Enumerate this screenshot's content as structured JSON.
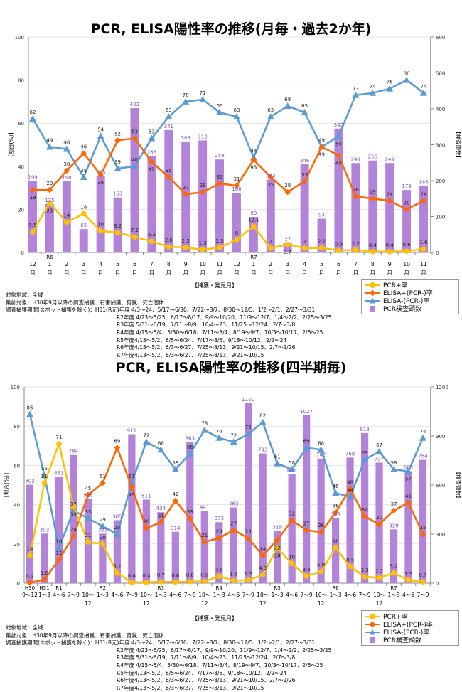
{
  "colors": {
    "pcr_pos": "#FFC000",
    "elisa_pos": "#FF6600",
    "elisa_neg": "#5B9BD5",
    "bars": "#B383D9",
    "bar_label": "#7B4FC0"
  },
  "legend": [
    "PCR+率",
    "ELISA+(PCR-)率",
    "ELISA-(PCR-)率",
    "PCR検査頭数"
  ],
  "notes": {
    "area": "対象地域：全域",
    "target": "集計対象：H30年9月以降の調査捕獲、有害捕獲、狩猟、死亡個体",
    "period_label": "調査捕獲期間(スポット捕獲を除く)：",
    "periods": [
      "H31(R元)年度 4/3～24、5/17～6/30、7/22～8/7、8/30～12/5、1/2～2/1、2/27～3/31",
      "R2年度 4/23～5/25、6/17～8/17、9/9～10/20、11/9～12/7、1/4～2/2、2/25～3/25",
      "R3年度 5/31～6/19、7/11～8/9、10/4～23、11/25～12/24、2/7～3/8",
      "R4年度 4/15～5/4、5/30～6/18、7/11～8/4、8/19～9/7、10/3～10/17、2/6～25",
      "R5年度4/13～5/2、6/5～6/24、7/17～8/5、9/18～10/12、2/2～24",
      "R6年度4/13～5/2、6/3～6/27、7/25～8/13、9/21～10/15、2/7～2/26",
      "R7年度4/13～5/2、6/3～6/27、7/25～8/13、9/21～10/15"
    ]
  },
  "chart_data": [
    {
      "type": "bar+line",
      "title": "PCR, ELISA陽性率の推移(月毎・過去2か年)",
      "xlabel": "【捕獲・発見月】",
      "ylabel": "【割合(%)】",
      "y2label": "【検査頭数】",
      "ylim": [
        0,
        100
      ],
      "yticks": [
        0,
        20,
        40,
        60,
        80,
        100
      ],
      "y2lim": [
        0,
        600
      ],
      "y2ticks": [
        0,
        100,
        200,
        300,
        400,
        500,
        600
      ],
      "grid": true,
      "legend_position": "bottom-right",
      "categories": [
        "12",
        "1",
        "2",
        "3",
        "4",
        "5",
        "6",
        "7",
        "8",
        "9",
        "10",
        "11",
        "12",
        "1",
        "2",
        "3",
        "4",
        "5",
        "6",
        "7",
        "8",
        "9",
        "10",
        "11"
      ],
      "category_unit": "月",
      "eras": [
        "",
        "R6",
        "",
        "",
        "",
        "",
        "",
        "",
        "",
        "",
        "",
        "",
        "",
        "R7",
        "",
        "",
        "",
        "",
        "",
        "",
        "",
        "",
        "",
        ""
      ],
      "series": [
        {
          "name": "PCR検査頭数",
          "kind": "bar",
          "axis": "right",
          "values": [
            199,
            135,
            198,
            65,
            213,
            153,
            402,
            268,
            341,
            309,
            312,
            259,
            166,
            99,
            203,
            27,
            246,
            94,
            345,
            249,
            256,
            249,
            174,
            185
          ]
        },
        {
          "name": "ELISA-(PCR-)率",
          "kind": "line",
          "axis": "left",
          "values": [
            62,
            49,
            48,
            35,
            54,
            39,
            40,
            53,
            63,
            70,
            71,
            65,
            63,
            44,
            63,
            68,
            65,
            49,
            54,
            73,
            74,
            76,
            80,
            74
          ]
        },
        {
          "name": "ELISA+(PCR-)率",
          "kind": "line",
          "axis": "left",
          "values": [
            29,
            29,
            38,
            46,
            36,
            52,
            53,
            42,
            35,
            27,
            28,
            32,
            31,
            43,
            35,
            28,
            33,
            49,
            45,
            26,
            25,
            24,
            20,
            24
          ]
        },
        {
          "name": "PCR+率",
          "kind": "line",
          "axis": "left",
          "values": [
            9.5,
            23,
            14,
            18,
            10,
            9.2,
            7.2,
            5.2,
            2.6,
            2.3,
            1.3,
            2.3,
            6.0,
            12.1,
            2.0,
            3.7,
            2.0,
            2.1,
            0.9,
            1.2,
            0.4,
            0.4,
            0.6,
            1.6
          ]
        }
      ]
    },
    {
      "type": "bar+line",
      "title": "PCR, ELISA陽性率の推移(四半期毎)",
      "xlabel": "【捕獲・発見月】",
      "ylabel": "【割合(%)】",
      "y2label": "【検査頭数】",
      "ylim": [
        0,
        100
      ],
      "yticks": [
        0,
        20,
        40,
        60,
        80,
        100
      ],
      "y2lim": [
        0,
        1200
      ],
      "y2ticks": [
        0,
        300,
        600,
        900,
        1200
      ],
      "grid": true,
      "legend_position": "bottom-right",
      "categories": [
        "9～12",
        "1～3",
        "4～6",
        "7～9",
        "10～12",
        "1～3",
        "4～6",
        "7～9",
        "10～12",
        "1～3",
        "4～6",
        "7～9",
        "10～12",
        "1～3",
        "4～6",
        "7～9",
        "10～12",
        "1～3",
        "4～6",
        "7～9",
        "10～12",
        "1～3",
        "4～6",
        "7～9",
        "10～12",
        "1～3",
        "4～6",
        "7～9"
      ],
      "category_unit": "",
      "eras": [
        "H30",
        "H31",
        "R1",
        "",
        "",
        "R2",
        "",
        "",
        "",
        "R3",
        "",
        "",
        "",
        "R4",
        "",
        "",
        "",
        "R5",
        "",
        "",
        "",
        "R6",
        "",
        "",
        "",
        "R7",
        "",
        ""
      ],
      "series": [
        {
          "name": "PCR検査頭数",
          "kind": "bar",
          "axis": "right",
          "values": [
            602,
            303,
            651,
            784,
            516,
            303,
            385,
            911,
            511,
            434,
            314,
            863,
            441,
            373,
            463,
            1100,
            793,
            319,
            665,
            1027,
            762,
            398,
            768,
            918,
            737,
            329,
            685,
            754
          ]
        },
        {
          "name": "ELISA-(PCR-)率",
          "kind": "line",
          "axis": "left",
          "values": [
            86,
            55,
            18,
            37,
            33,
            29,
            25,
            51,
            72,
            68,
            58,
            66,
            78,
            74,
            72,
            76,
            82,
            61,
            58,
            69,
            68,
            46,
            44,
            63,
            67,
            58,
            57,
            74
          ]
        },
        {
          "name": "ELISA+(PCR-)率",
          "kind": "line",
          "axis": "left",
          "values": [
            0.2,
            1.8,
            12,
            24,
            45,
            51,
            69,
            49,
            28,
            31,
            42,
            33,
            21,
            23,
            27,
            23,
            14,
            22,
            32,
            27,
            26,
            36,
            48,
            34,
            30,
            37,
            41,
            25
          ]
        },
        {
          "name": "PCR+率",
          "kind": "line",
          "axis": "left",
          "values": [
            14,
            51,
            71,
            39,
            21,
            20,
            5.2,
            0.4,
            0.4,
            0.7,
            0.6,
            0.8,
            0.9,
            3.5,
            1.3,
            1.5,
            4.3,
            18,
            10,
            3.6,
            5.9,
            18,
            8.5,
            3.3,
            2.7,
            5.2,
            1.5,
            0.7
          ]
        }
      ]
    }
  ]
}
